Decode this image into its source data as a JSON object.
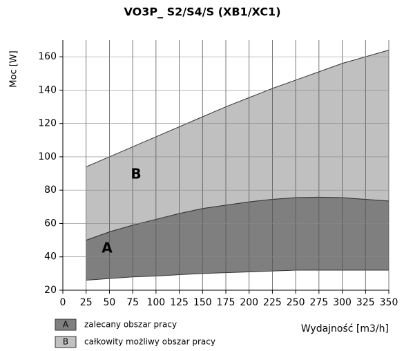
{
  "chart_data": {
    "type": "band-area",
    "title": "VO3P_ S2/S4/S (XB1/XC1)",
    "ylabel": "Moc [W]",
    "xlabel": "Wydajność [m3/h]",
    "x": [
      25,
      50,
      75,
      100,
      125,
      150,
      175,
      200,
      225,
      250,
      275,
      300,
      325,
      350
    ],
    "series": [
      {
        "name": "zalecany obszar pracy",
        "label": "A",
        "color": "#7f7f7f",
        "lower": [
          26,
          27,
          28,
          28.5,
          29.3,
          30,
          30.5,
          31,
          31.5,
          32,
          32,
          32,
          32,
          32
        ],
        "upper": [
          50,
          55,
          59,
          62.5,
          66,
          69,
          71,
          73,
          74.5,
          75.5,
          75.8,
          75.5,
          74.5,
          73.5
        ]
      },
      {
        "name": "całkowity możliwy obszar pracy",
        "label": "B",
        "color": "#c0c0c0",
        "lower": [
          50,
          55,
          59,
          62.5,
          66,
          69,
          71,
          73,
          74.5,
          75.5,
          75.8,
          75.5,
          74.5,
          73.5
        ],
        "upper": [
          94,
          100,
          106,
          112,
          118,
          124,
          130,
          135.5,
          141,
          146,
          151,
          156,
          160,
          164
        ]
      }
    ],
    "xlim": [
      0,
      350
    ],
    "xticks": [
      0,
      25,
      50,
      75,
      100,
      125,
      150,
      175,
      200,
      225,
      250,
      275,
      300,
      325,
      350
    ],
    "ylim": [
      20,
      170
    ],
    "yticks": [
      20,
      40,
      60,
      80,
      100,
      120,
      140,
      160
    ],
    "grid": true
  }
}
